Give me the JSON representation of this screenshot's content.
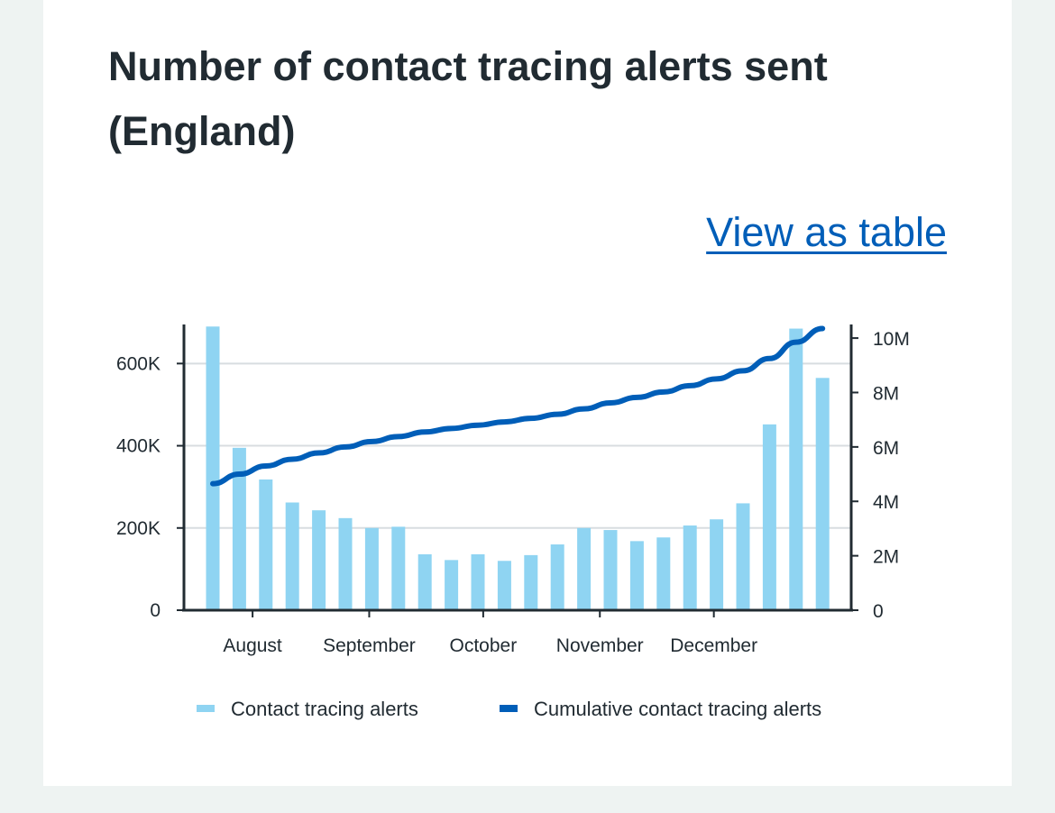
{
  "card": {
    "title": "Number of contact tracing alerts sent (England)",
    "view_table_link": "View as table"
  },
  "colors": {
    "bar": "#8fd4f2",
    "line": "#005eb8",
    "grid": "#d8dde0",
    "axis": "#212b32",
    "link": "#005eb8"
  },
  "chart_data": {
    "type": "bar",
    "title": "Number of contact tracing alerts sent (England)",
    "xlabel": "",
    "ylabel": "",
    "month_labels": [
      "August",
      "September",
      "October",
      "November",
      "December"
    ],
    "left_axis": {
      "ticks": [
        0,
        200000,
        400000,
        600000
      ],
      "tick_labels": [
        "0",
        "200K",
        "400K",
        "600K"
      ],
      "ylim": [
        0,
        695000
      ]
    },
    "right_axis": {
      "ticks": [
        0,
        2000000,
        4000000,
        6000000,
        8000000,
        10000000
      ],
      "tick_labels": [
        "0",
        "2M",
        "4M",
        "6M",
        "8M",
        "10M"
      ],
      "ylim": [
        0,
        10500000
      ]
    },
    "grid": true,
    "legend_position": "bottom",
    "series": [
      {
        "name": "Contact tracing alerts",
        "kind": "bar",
        "axis": "left",
        "values": [
          690000,
          395000,
          318000,
          262000,
          243000,
          224000,
          200000,
          203000,
          136000,
          122000,
          136000,
          120000,
          134000,
          160000,
          200000,
          195000,
          168000,
          177000,
          206000,
          221000,
          260000,
          452000,
          685000,
          565000
        ]
      },
      {
        "name": "Cumulative contact tracing alerts",
        "kind": "line",
        "axis": "right",
        "values": [
          4650000,
          5000000,
          5300000,
          5550000,
          5780000,
          6000000,
          6200000,
          6380000,
          6550000,
          6680000,
          6800000,
          6920000,
          7050000,
          7200000,
          7400000,
          7620000,
          7820000,
          8020000,
          8250000,
          8500000,
          8800000,
          9250000,
          9850000,
          10350000
        ]
      }
    ]
  }
}
